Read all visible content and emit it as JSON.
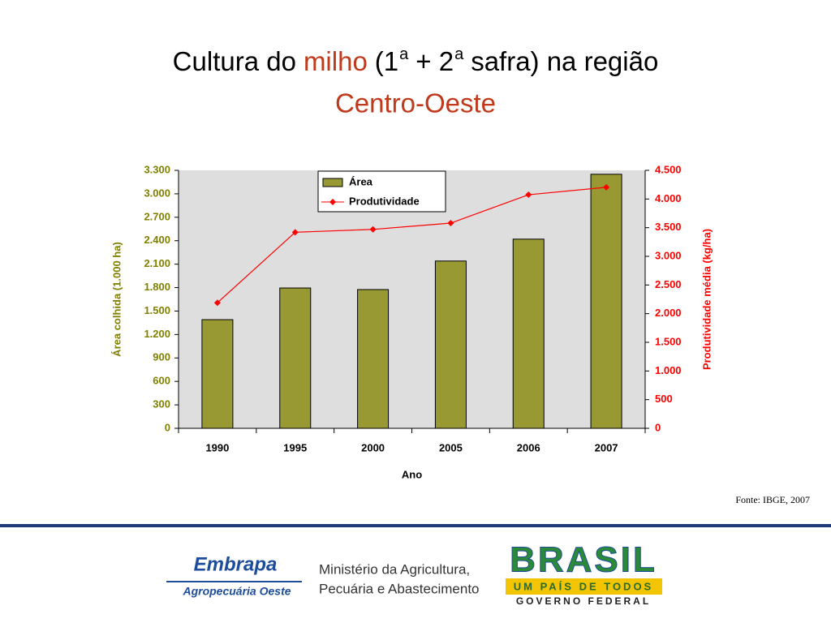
{
  "chart_data": {
    "type": "bar_line",
    "title_parts": [
      "Cultura do",
      "milho",
      "(1",
      "a",
      "+ 2",
      "a",
      "safra) na região",
      "Centro-Oeste"
    ],
    "categories": [
      "1990",
      "1995",
      "2000",
      "2005",
      "2006",
      "2007"
    ],
    "series": [
      {
        "name": "Área",
        "type": "bar",
        "color": "#999933",
        "values": [
          1390,
          1795,
          1775,
          2140,
          2420,
          3250
        ]
      },
      {
        "name": "Produtividade",
        "type": "line",
        "axis": "y2",
        "color": "#ff0000",
        "values": [
          2190,
          3420,
          3470,
          3580,
          4075,
          4205
        ]
      }
    ],
    "xlabel": "Ano",
    "ylabel": "Área colhida (1.000 ha)",
    "y2label": "Produtividade média (kg/ha)",
    "ylim": [
      0,
      3300
    ],
    "yticks": [
      0,
      300,
      600,
      900,
      {
        "value": 1200,
        "label": "1.200"
      },
      {
        "value": 1500,
        "label": "1.500"
      },
      {
        "value": 1800,
        "label": "1.800"
      },
      {
        "value": 2100,
        "label": "2.100"
      },
      {
        "value": 2400,
        "label": "2.400"
      },
      {
        "value": 2700,
        "label": "2.700"
      },
      {
        "value": 3000,
        "label": "3.000"
      },
      {
        "value": 3300,
        "label": "3.300"
      }
    ],
    "y2lim": [
      0,
      4500
    ],
    "y2ticks": [
      0,
      500,
      {
        "value": 1000,
        "label": "1.000"
      },
      {
        "value": 1500,
        "label": "1.500"
      },
      {
        "value": 2000,
        "label": "2.000"
      },
      {
        "value": 2500,
        "label": "2.500"
      },
      {
        "value": 3000,
        "label": "3.000"
      },
      {
        "value": 3500,
        "label": "3.500"
      },
      {
        "value": 4000,
        "label": "4.000"
      },
      {
        "value": 4500,
        "label": "4.500"
      }
    ],
    "legend": "top-center",
    "source": "Fonte: IBGE, 2007"
  },
  "footer": {
    "embrapa": "Embrapa",
    "embrapa_unit": "Agropecuária Oeste",
    "ministry_line1": "Ministério da Agricultura,",
    "ministry_line2": "Pecuária e Abastecimento",
    "brasil": "BRASIL",
    "brasil_slogan": "UM PAÍS DE TODOS",
    "government": "GOVERNO FEDERAL"
  }
}
